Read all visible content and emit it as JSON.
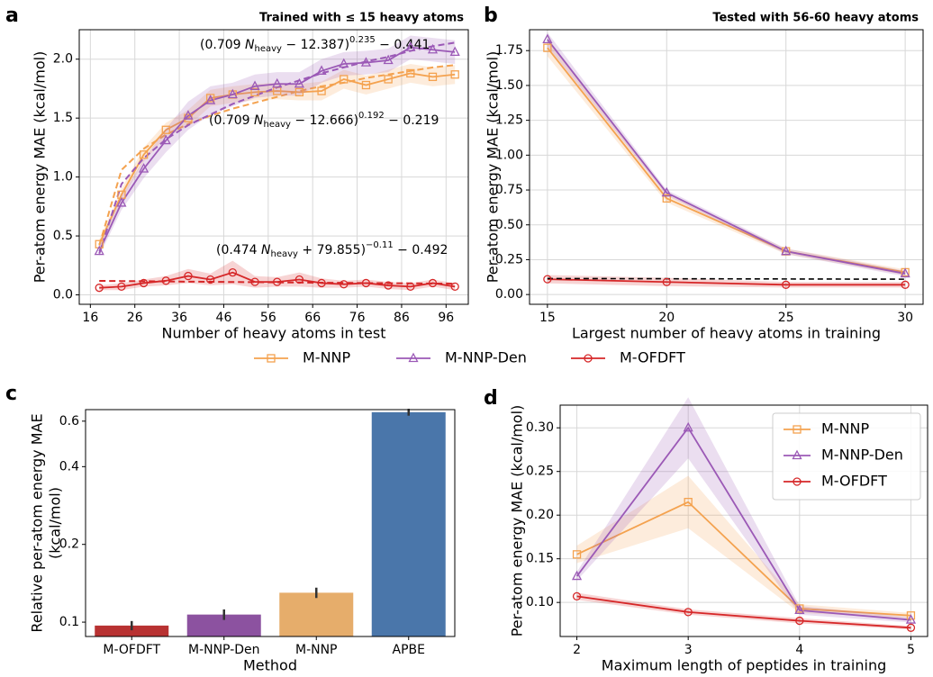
{
  "legend": {
    "entries": [
      {
        "name": "M-NNP",
        "color": "#f4a24f",
        "marker": "square"
      },
      {
        "name": "M-NNP-Den",
        "color": "#9b59b6",
        "marker": "triangle"
      },
      {
        "name": "M-OFDFT",
        "color": "#d62728",
        "marker": "circle"
      }
    ]
  },
  "chart_data": [
    {
      "type": "line",
      "panel_label": "a",
      "title": "Trained with ≤ 15 heavy atoms",
      "x_label": "Number of heavy atoms in test",
      "y_label": "Per-atom energy MAE (kcal/mol)",
      "x": [
        18,
        23,
        28,
        33,
        38,
        43,
        48,
        53,
        58,
        63,
        68,
        73,
        78,
        83,
        88,
        93,
        98
      ],
      "xlim": [
        13.5,
        101
      ],
      "xticks": [
        16,
        26,
        36,
        46,
        56,
        66,
        76,
        86,
        96
      ],
      "ylim": [
        -0.08,
        2.25
      ],
      "yticks": [
        {
          "value": 0,
          "label": "0.0"
        },
        {
          "value": 0.5,
          "label": "0.5"
        },
        {
          "value": 1,
          "label": "1.0"
        },
        {
          "value": 1.5,
          "label": "1.5"
        },
        {
          "value": 2,
          "label": "2.0"
        }
      ],
      "grid": true,
      "series": [
        {
          "color": "#f4a24f",
          "marker": "square",
          "values": [
            0.43,
            0.85,
            1.19,
            1.4,
            1.5,
            1.67,
            1.7,
            1.72,
            1.73,
            1.72,
            1.73,
            1.83,
            1.78,
            1.83,
            1.88,
            1.85,
            1.87
          ],
          "errors": [
            0.04,
            0.05,
            0.06,
            0.06,
            0.07,
            0.07,
            0.07,
            0.07,
            0.07,
            0.07,
            0.08,
            0.08,
            0.08,
            0.08,
            0.08,
            0.08,
            0.08
          ],
          "fit": [
            0.42,
            1.06,
            1.24,
            1.36,
            1.45,
            1.52,
            1.58,
            1.63,
            1.68,
            1.73,
            1.77,
            1.8,
            1.84,
            1.87,
            1.9,
            1.93,
            1.95
          ]
        },
        {
          "color": "#9b59b6",
          "marker": "triangle",
          "values": [
            0.37,
            0.78,
            1.07,
            1.31,
            1.52,
            1.65,
            1.7,
            1.77,
            1.79,
            1.79,
            1.9,
            1.96,
            1.97,
            1.99,
            2.1,
            2.08,
            2.06
          ],
          "errors": [
            0.04,
            0.06,
            0.08,
            0.1,
            0.12,
            0.12,
            0.1,
            0.1,
            0.1,
            0.1,
            0.1,
            0.1,
            0.1,
            0.1,
            0.1,
            0.1,
            0.1
          ],
          "fit": [
            0.35,
            0.94,
            1.16,
            1.32,
            1.44,
            1.53,
            1.62,
            1.69,
            1.76,
            1.82,
            1.88,
            1.93,
            1.98,
            2.02,
            2.07,
            2.11,
            2.14
          ]
        },
        {
          "color": "#d62728",
          "marker": "circle",
          "values": [
            0.06,
            0.07,
            0.1,
            0.12,
            0.16,
            0.13,
            0.19,
            0.11,
            0.11,
            0.13,
            0.1,
            0.09,
            0.1,
            0.08,
            0.07,
            0.1,
            0.07
          ],
          "errors": [
            0.02,
            0.03,
            0.03,
            0.04,
            0.06,
            0.05,
            0.1,
            0.05,
            0.04,
            0.06,
            0.04,
            0.03,
            0.03,
            0.03,
            0.03,
            0.03,
            0.03
          ],
          "fit": [
            0.119,
            0.117,
            0.116,
            0.114,
            0.112,
            0.111,
            0.109,
            0.108,
            0.106,
            0.105,
            0.103,
            0.102,
            0.1,
            0.099,
            0.098,
            0.096,
            0.095
          ]
        }
      ],
      "annotations": [
        {
          "parts": [
            "(0.709 ",
            "N",
            "heavy",
            " − 12.387)",
            "0.235",
            " − 0.441"
          ]
        },
        {
          "parts": [
            "(0.709 ",
            "N",
            "heavy",
            " − 12.666)",
            "0.192",
            " − 0.219"
          ]
        },
        {
          "parts": [
            "(0.474 ",
            "N",
            "heavy",
            " + 79.855)",
            "−0.11",
            " − 0.492"
          ]
        }
      ]
    },
    {
      "type": "line",
      "panel_label": "b",
      "title": "Tested with 56-60 heavy atoms",
      "x_label": "Largest number of heavy atoms in training",
      "y_label": "Per-atom energy MAE (kcal/mol)",
      "x": [
        15,
        20,
        25,
        30
      ],
      "xlim": [
        14.25,
        30.75
      ],
      "xticks": [
        15,
        20,
        25,
        30
      ],
      "ylim": [
        -0.07,
        1.9
      ],
      "yticks": [
        {
          "value": 0,
          "label": "0.00"
        },
        {
          "value": 0.25,
          "label": "0.25"
        },
        {
          "value": 0.5,
          "label": "0.50"
        },
        {
          "value": 0.75,
          "label": "0.75"
        },
        {
          "value": 1,
          "label": "1.00"
        },
        {
          "value": 1.25,
          "label": "1.25"
        },
        {
          "value": 1.5,
          "label": "1.50"
        },
        {
          "value": 1.75,
          "label": "1.75"
        }
      ],
      "grid": true,
      "series": [
        {
          "color": "#f4a24f",
          "marker": "square",
          "values": [
            1.77,
            0.69,
            0.31,
            0.16
          ],
          "errors": [
            0.06,
            0.03,
            0.02,
            0.02
          ]
        },
        {
          "color": "#9b59b6",
          "marker": "triangle",
          "values": [
            1.83,
            0.73,
            0.31,
            0.15
          ],
          "errors": [
            0.05,
            0.02,
            0.02,
            0.02
          ]
        },
        {
          "color": "#d62728",
          "marker": "circle",
          "values": [
            0.11,
            0.09,
            0.07,
            0.07
          ],
          "errors": [
            0.03,
            0.03,
            0.02,
            0.02
          ]
        }
      ],
      "reference": {
        "x": [
          15,
          30
        ],
        "values": [
          0.115,
          0.11
        ],
        "color": "#000000"
      }
    },
    {
      "type": "bar",
      "panel_label": "c",
      "x_label": "Method",
      "y_label": [
        "Relative per-atom energy MAE",
        "(kcal/mol)"
      ],
      "categories": [
        "M-OFDFT",
        "M-NNP-Den",
        "M-NNP",
        "APBE"
      ],
      "values": [
        0.097,
        0.107,
        0.13,
        0.65
      ],
      "errors": [
        0.004,
        0.005,
        0.006,
        0.02
      ],
      "colors": [
        "#b83232",
        "#8c52a0",
        "#e6ad6b",
        "#4a76aa"
      ],
      "log_y": true,
      "ylim": [
        0.088,
        0.665
      ],
      "yticks": [
        0.1,
        0.2,
        0.4,
        0.6
      ],
      "grid": false
    },
    {
      "type": "line",
      "panel_label": "d",
      "x_label": "Maximum length of peptides in training",
      "y_label": "Per-atom energy MAE (kcal/mol)",
      "x": [
        2,
        3,
        4,
        5
      ],
      "xlim": [
        1.85,
        5.15
      ],
      "xticks": [
        2,
        3,
        4,
        5
      ],
      "ylim": [
        0.061,
        0.326
      ],
      "yticks": [
        {
          "value": 0.1,
          "label": "0.10"
        },
        {
          "value": 0.15,
          "label": "0.15"
        },
        {
          "value": 0.2,
          "label": "0.20"
        },
        {
          "value": 0.25,
          "label": "0.25"
        },
        {
          "value": 0.3,
          "label": "0.30"
        }
      ],
      "grid": true,
      "legend": "upper right",
      "series": [
        {
          "name": "M-NNP",
          "color": "#f4a24f",
          "marker": "square",
          "values": [
            0.155,
            0.215,
            0.093,
            0.085
          ],
          "errors": [
            0.01,
            0.03,
            0.005,
            0.003
          ]
        },
        {
          "name": "M-NNP-Den",
          "color": "#9b59b6",
          "marker": "triangle",
          "values": [
            0.13,
            0.3,
            0.091,
            0.08
          ],
          "errors": [
            0.005,
            0.035,
            0.005,
            0.003
          ]
        },
        {
          "name": "M-OFDFT",
          "color": "#d62728",
          "marker": "circle",
          "values": [
            0.107,
            0.089,
            0.079,
            0.071
          ],
          "errors": [
            0.004,
            0.003,
            0.003,
            0.002
          ]
        }
      ]
    }
  ]
}
